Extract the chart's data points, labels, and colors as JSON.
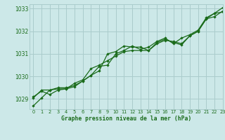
{
  "bg_color": "#cce8e8",
  "grid_color": "#aacccc",
  "line_color": "#1a6b1a",
  "marker_color": "#1a6b1a",
  "xlabel": "Graphe pression niveau de la mer (hPa)",
  "xlim": [
    -0.5,
    23
  ],
  "ylim": [
    1028.55,
    1033.2
  ],
  "yticks": [
    1029,
    1030,
    1031,
    1032,
    1033
  ],
  "xticks": [
    0,
    1,
    2,
    3,
    4,
    5,
    6,
    7,
    8,
    9,
    10,
    11,
    12,
    13,
    14,
    15,
    16,
    17,
    18,
    19,
    20,
    21,
    22,
    23
  ],
  "series": [
    [
      1028.7,
      1029.05,
      1029.4,
      1029.5,
      1029.5,
      1029.6,
      1029.8,
      1030.05,
      1030.25,
      1031.0,
      1031.1,
      1031.35,
      1031.3,
      1031.3,
      1031.15,
      1031.5,
      1031.65,
      1031.5,
      1031.4,
      1031.8,
      1032.0,
      1032.55,
      1032.8,
      1033.05
    ],
    [
      1029.05,
      1029.4,
      1029.4,
      1029.45,
      1029.45,
      1029.7,
      1029.85,
      1030.35,
      1030.5,
      1030.7,
      1030.9,
      1031.1,
      1031.15,
      1031.15,
      1031.15,
      1031.45,
      1031.6,
      1031.55,
      1031.45,
      1031.8,
      1032.0,
      1032.55,
      1032.65,
      1032.9
    ],
    [
      1029.1,
      1029.35,
      1029.2,
      1029.4,
      1029.45,
      1029.55,
      1029.8,
      1030.05,
      1030.45,
      1030.5,
      1031.0,
      1031.15,
      1031.35,
      1031.2,
      1031.3,
      1031.55,
      1031.7,
      1031.45,
      1031.7,
      1031.85,
      1032.05,
      1032.6,
      1032.8,
      1032.85
    ]
  ],
  "fig_width": 3.2,
  "fig_height": 2.0,
  "dpi": 100
}
